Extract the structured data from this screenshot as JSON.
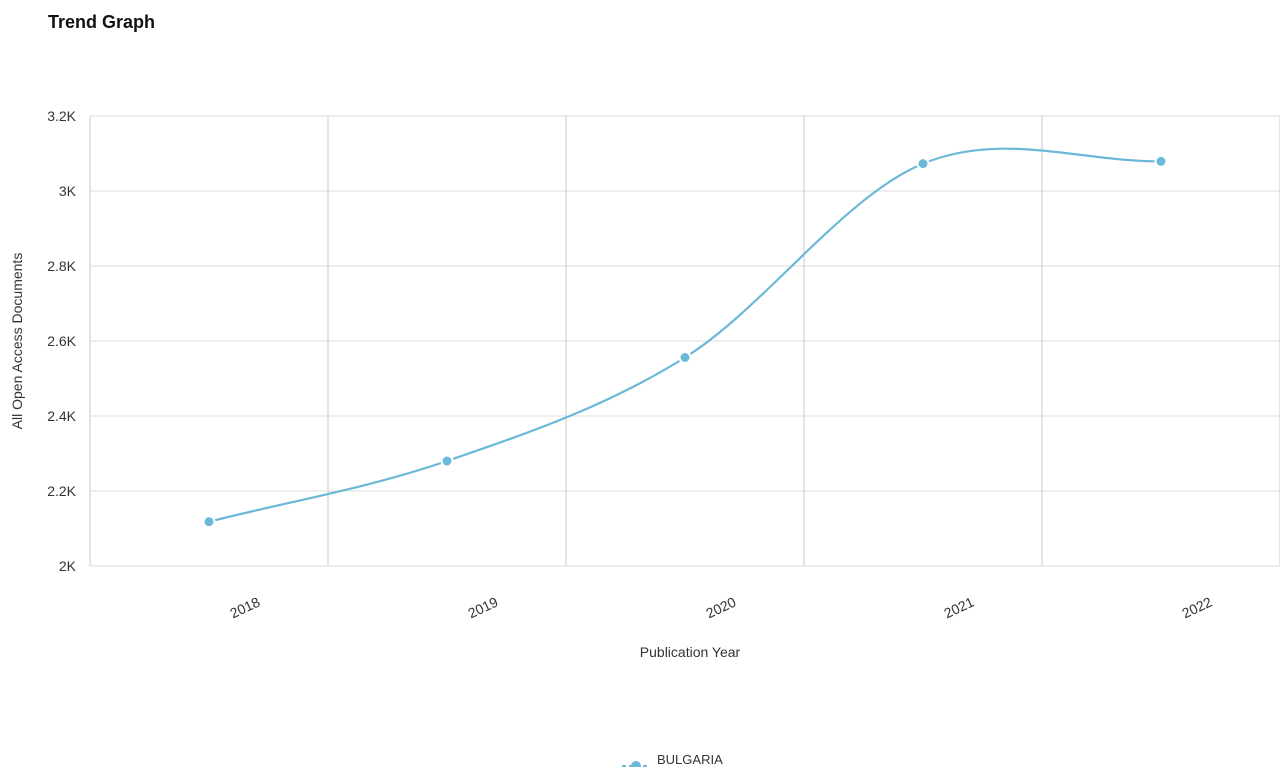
{
  "page": {
    "title": "Trend Graph"
  },
  "colors": {
    "series": "#6bb8d9",
    "grid": "#dcdcdc",
    "vgrid": "#c8c8c8"
  },
  "chart_data": {
    "type": "line",
    "title": "Trend Graph",
    "xlabel": "Publication Year",
    "ylabel": "All Open Access Documents",
    "categories": [
      "2018",
      "2019",
      "2020",
      "2021",
      "2022"
    ],
    "series": [
      {
        "name": "BULGARIA",
        "values": [
          2118,
          2280,
          2556,
          3073,
          3079
        ]
      }
    ],
    "ylim": [
      2000,
      3200
    ],
    "yticks": [
      2000,
      2200,
      2400,
      2600,
      2800,
      3000,
      3200
    ],
    "ytick_labels": [
      "2K",
      "2.2K",
      "2.4K",
      "2.6K",
      "2.8K",
      "3K",
      "3.2K"
    ],
    "grid": true,
    "legend_position": "bottom-center"
  }
}
